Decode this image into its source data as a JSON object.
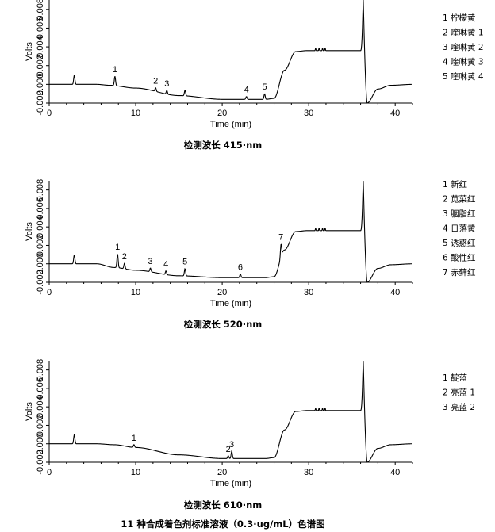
{
  "chart_data": [
    {
      "type": "line",
      "title": "检测波长 415·nm",
      "xlabel": "Time (min)",
      "ylabel": "Volts",
      "xlim": [
        0,
        42
      ],
      "ylim": [
        -0.002,
        0.009
      ],
      "x_ticks": [
        "0",
        "10",
        "20",
        "30",
        "40"
      ],
      "y_ticks": [
        "-0.002",
        "0.000",
        "0.002",
        "0.004",
        "0.006",
        "0.008"
      ],
      "legend_placement": "right",
      "legend": [
        "1  柠檬黄",
        "2  喹啉黄 1",
        "3  喹啉黄 2",
        "4  喹啉黄 3",
        "5  喹啉黄 4"
      ],
      "peaks": [
        {
          "label": "1",
          "x": 7.6,
          "height": 0.001
        },
        {
          "label": "2",
          "x": 12.3,
          "height": 0.0004
        },
        {
          "label": "3",
          "x": 13.6,
          "height": 0.0004
        },
        {
          "label": "4",
          "x": 22.8,
          "height": 0.0003
        },
        {
          "label": "5",
          "x": 24.9,
          "height": 0.0006
        }
      ],
      "minor_peaks": [
        {
          "x": 2.9,
          "height": 0.001
        },
        {
          "x": 15.7,
          "height": 0.0006
        }
      ],
      "baseline": [
        [
          0,
          0.0
        ],
        [
          5.5,
          0.0
        ],
        [
          7.0,
          -0.0001
        ],
        [
          10,
          -0.0004
        ],
        [
          15,
          -0.0012
        ],
        [
          20,
          -0.0016
        ],
        [
          25,
          -0.0016
        ],
        [
          26,
          -0.0015
        ],
        [
          27.2,
          0.0015
        ],
        [
          28.5,
          0.0035
        ],
        [
          29.8,
          0.0036
        ],
        [
          32,
          0.0036
        ],
        [
          36,
          0.0036
        ]
      ],
      "solvent_peak": {
        "x": 36.3,
        "top": 0.0095,
        "dip": -0.002
      },
      "tail": [
        [
          38,
          -0.0005
        ],
        [
          39.5,
          -0.0001
        ],
        [
          42,
          0.0
        ]
      ]
    },
    {
      "type": "line",
      "title": "检测波长 520·nm",
      "xlabel": "Time (min)",
      "ylabel": "Volts",
      "xlim": [
        0,
        42
      ],
      "ylim": [
        -0.002,
        0.009
      ],
      "x_ticks": [
        "0",
        "10",
        "20",
        "30",
        "40"
      ],
      "y_ticks": [
        "-0.002",
        "0.000",
        "0.002",
        "0.004",
        "0.006",
        "0.008"
      ],
      "legend_placement": "right",
      "legend": [
        "1  新红",
        "2  苋菜红",
        "3  胭脂红",
        "4  日落黄",
        "5  诱惑红",
        "6  酸性红",
        "7  赤藓红"
      ],
      "peaks": [
        {
          "label": "1",
          "x": 7.9,
          "height": 0.0015
        },
        {
          "label": "2",
          "x": 8.7,
          "height": 0.0006
        },
        {
          "label": "3",
          "x": 11.7,
          "height": 0.0004
        },
        {
          "label": "4",
          "x": 13.5,
          "height": 0.0004
        },
        {
          "label": "5",
          "x": 15.7,
          "height": 0.0008
        },
        {
          "label": "6",
          "x": 22.1,
          "height": 0.0004
        },
        {
          "label": "7",
          "x": 26.8,
          "height": 0.0014
        }
      ],
      "minor_peaks": [
        {
          "x": 2.9,
          "height": 0.001
        }
      ],
      "baseline": [
        [
          0,
          0.0
        ],
        [
          5.5,
          0.0
        ],
        [
          7.5,
          -0.0004
        ],
        [
          10,
          -0.0007
        ],
        [
          15,
          -0.0013
        ],
        [
          20,
          -0.0015
        ],
        [
          25,
          -0.0015
        ],
        [
          26,
          -0.0014
        ],
        [
          27.2,
          0.0015
        ],
        [
          28.5,
          0.0035
        ],
        [
          29.8,
          0.0036
        ],
        [
          32,
          0.0036
        ],
        [
          36,
          0.0036
        ]
      ],
      "solvent_peak": {
        "x": 36.3,
        "top": 0.0095,
        "dip": -0.002
      },
      "tail": [
        [
          38,
          -0.0005
        ],
        [
          39.5,
          -0.0001
        ],
        [
          42,
          0.0
        ]
      ]
    },
    {
      "type": "line",
      "title": "检测波长 610·nm",
      "xlabel": "Time (min)",
      "ylabel": "Volts",
      "xlim": [
        0,
        42
      ],
      "ylim": [
        -0.002,
        0.009
      ],
      "x_ticks": [
        "0",
        "10",
        "20",
        "30",
        "40"
      ],
      "y_ticks": [
        "-0.002",
        "0.000",
        "0.002",
        "0.004",
        "0.006",
        "0.008"
      ],
      "legend_placement": "right",
      "legend": [
        "1  靛蓝",
        "2  亮蓝 1",
        "3  亮蓝 2"
      ],
      "peaks": [
        {
          "label": "1",
          "x": 9.8,
          "height": 0.0003
        },
        {
          "label": "2",
          "x": 20.7,
          "height": 0.0003
        },
        {
          "label": "3",
          "x": 21.1,
          "height": 0.0008
        }
      ],
      "minor_peaks": [
        {
          "x": 2.9,
          "height": 0.001
        }
      ],
      "baseline": [
        [
          0,
          0.0
        ],
        [
          5.5,
          0.0
        ],
        [
          7.5,
          -0.0001
        ],
        [
          10,
          -0.0004
        ],
        [
          15,
          -0.0012
        ],
        [
          20,
          -0.0016
        ],
        [
          25,
          -0.0016
        ],
        [
          26,
          -0.0015
        ],
        [
          27.2,
          0.0015
        ],
        [
          28.5,
          0.0035
        ],
        [
          29.8,
          0.0036
        ],
        [
          32,
          0.0036
        ],
        [
          36,
          0.0036
        ]
      ],
      "solvent_peak": {
        "x": 36.3,
        "top": 0.0095,
        "dip": -0.002
      },
      "tail": [
        [
          38,
          -0.0005
        ],
        [
          39.5,
          -0.0001
        ],
        [
          42,
          0.0
        ]
      ]
    }
  ],
  "figure_caption": "11 种合成着色剂标准溶液（0.3·ug/mL）色谱图"
}
